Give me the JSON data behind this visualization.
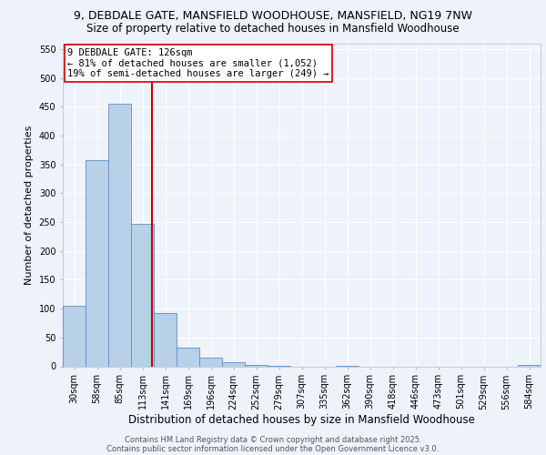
{
  "title_line1": "9, DEBDALE GATE, MANSFIELD WOODHOUSE, MANSFIELD, NG19 7NW",
  "title_line2": "Size of property relative to detached houses in Mansfield Woodhouse",
  "xlabel": "Distribution of detached houses by size in Mansfield Woodhouse",
  "ylabel": "Number of detached properties",
  "bin_labels": [
    "30sqm",
    "58sqm",
    "85sqm",
    "113sqm",
    "141sqm",
    "169sqm",
    "196sqm",
    "224sqm",
    "252sqm",
    "279sqm",
    "307sqm",
    "335sqm",
    "362sqm",
    "390sqm",
    "418sqm",
    "446sqm",
    "473sqm",
    "501sqm",
    "529sqm",
    "556sqm",
    "584sqm"
  ],
  "bar_heights": [
    105,
    357,
    455,
    247,
    92,
    33,
    15,
    7,
    3,
    1,
    0,
    0,
    1,
    0,
    0,
    0,
    0,
    0,
    0,
    0,
    3
  ],
  "bar_color": "#b8d0e8",
  "bar_edge_color": "#5b8fc9",
  "vline_color": "#cc0000",
  "annotation_text": "9 DEBDALE GATE: 126sqm\n← 81% of detached houses are smaller (1,052)\n19% of semi-detached houses are larger (249) →",
  "annotation_box_color": "#ffffff",
  "annotation_box_edge": "#cc0000",
  "ylim": [
    0,
    560
  ],
  "yticks": [
    0,
    50,
    100,
    150,
    200,
    250,
    300,
    350,
    400,
    450,
    500,
    550
  ],
  "background_color": "#eef2fb",
  "grid_color": "#ffffff",
  "footer_line1": "Contains HM Land Registry data © Crown copyright and database right 2025.",
  "footer_line2": "Contains public sector information licensed under the Open Government Licence v3.0.",
  "title_fontsize": 9,
  "subtitle_fontsize": 8.5,
  "xlabel_fontsize": 8.5,
  "ylabel_fontsize": 8,
  "tick_fontsize": 7,
  "annotation_fontsize": 7.5,
  "footer_fontsize": 6
}
